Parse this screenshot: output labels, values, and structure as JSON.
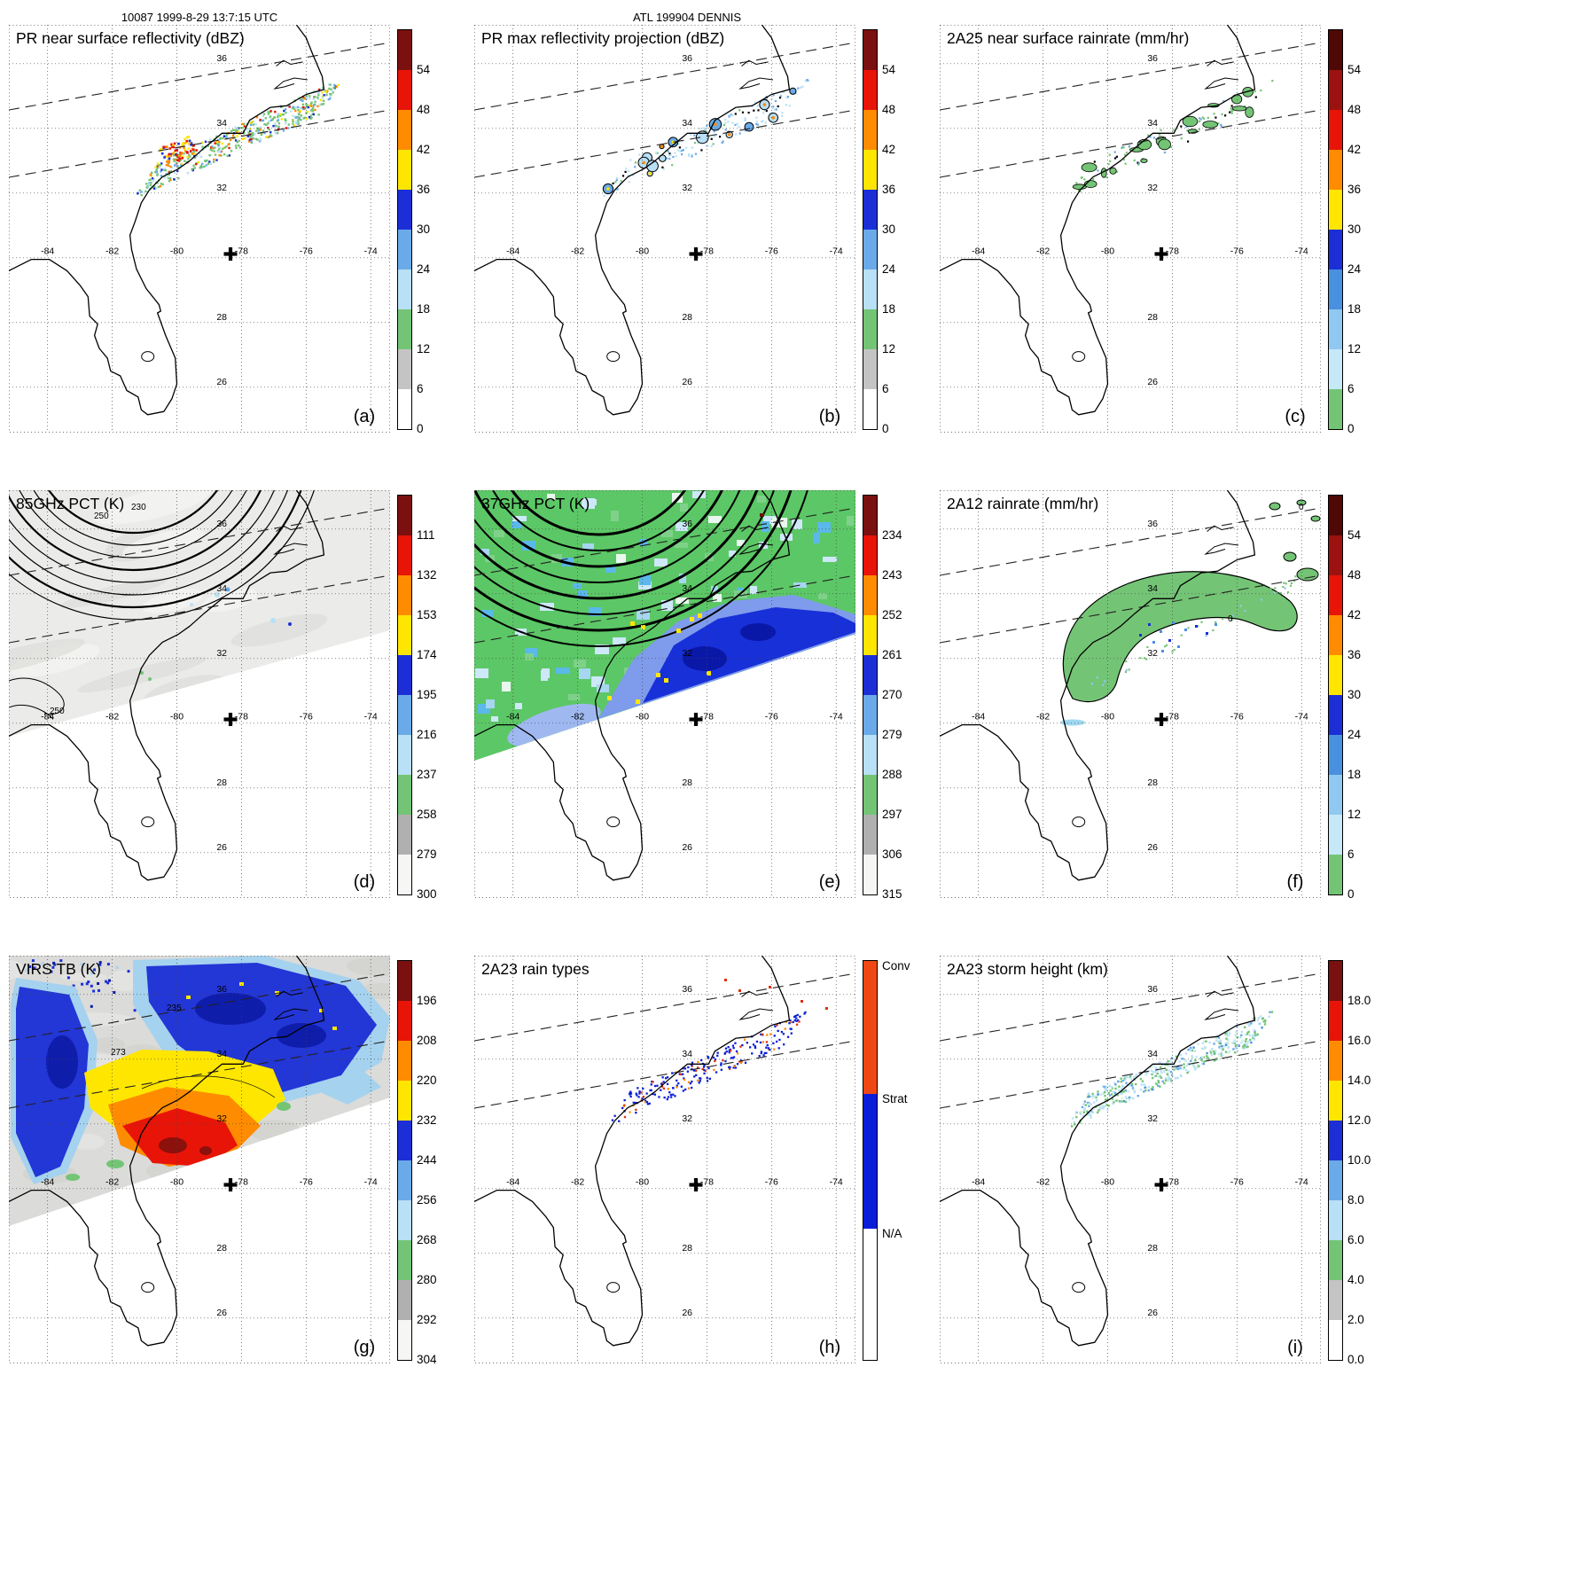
{
  "header": {
    "left": "10087 1999-8-29 13:7:15 UTC",
    "center": "ATL 199904 DENNIS"
  },
  "map": {
    "lon_labels": [
      "-84",
      "-82",
      "-80",
      "-78",
      "-76",
      "-74"
    ],
    "lat_labels": [
      "36",
      "34",
      "32",
      "28",
      "26"
    ]
  },
  "panels": [
    {
      "id": "a",
      "letter": "(a)",
      "title": "PR near surface reflectivity (dBZ)",
      "scale": "dbz",
      "colorbar_labels": [
        "54",
        "48",
        "42",
        "36",
        "30",
        "24",
        "18",
        "12",
        "6",
        "0"
      ]
    },
    {
      "id": "b",
      "letter": "(b)",
      "title": "PR max reflectivity projection (dBZ)",
      "scale": "dbz",
      "colorbar_labels": [
        "54",
        "48",
        "42",
        "36",
        "30",
        "24",
        "18",
        "12",
        "6",
        "0"
      ]
    },
    {
      "id": "c",
      "letter": "(c)",
      "title": "2A25 near surface rainrate (mm/hr)",
      "scale": "rain",
      "colorbar_labels": [
        "54",
        "48",
        "42",
        "36",
        "30",
        "24",
        "18",
        "12",
        "6",
        "0"
      ]
    },
    {
      "id": "d",
      "letter": "(d)",
      "title": "85GHz PCT (K)",
      "scale": "temp",
      "colorbar_labels": [
        "111",
        "132",
        "153",
        "174",
        "195",
        "216",
        "237",
        "258",
        "279",
        "300"
      ],
      "annotations": [
        "230",
        "250",
        "250"
      ]
    },
    {
      "id": "e",
      "letter": "(e)",
      "title": "37GHz PCT (K)",
      "scale": "temp",
      "colorbar_labels": [
        "234",
        "243",
        "252",
        "261",
        "270",
        "279",
        "288",
        "297",
        "306",
        "315"
      ]
    },
    {
      "id": "f",
      "letter": "(f)",
      "title": "2A12 rainrate (mm/hr)",
      "scale": "rain",
      "colorbar_labels": [
        "54",
        "48",
        "42",
        "36",
        "30",
        "24",
        "18",
        "12",
        "6",
        "0"
      ],
      "annotations": [
        "0",
        "0"
      ]
    },
    {
      "id": "g",
      "letter": "(g)",
      "title": "VIRS TB (K)",
      "scale": "temp",
      "colorbar_labels": [
        "196",
        "208",
        "220",
        "232",
        "244",
        "256",
        "268",
        "280",
        "292",
        "304"
      ],
      "annotations": [
        "235",
        "273"
      ]
    },
    {
      "id": "h",
      "letter": "(h)",
      "title": "2A23 rain types",
      "scale": "raintype",
      "colorbar_labels": [
        "Conv",
        "Strat",
        "N/A"
      ]
    },
    {
      "id": "i",
      "letter": "(i)",
      "title": "2A23 storm height (km)",
      "scale": "height",
      "colorbar_labels": [
        "18.0",
        "16.0",
        "14.0",
        "12.0",
        "10.0",
        "8.0",
        "6.0",
        "4.0",
        "2.0",
        "0.0"
      ]
    }
  ],
  "colors": {
    "scales": {
      "dbz": [
        "#7a100f",
        "#e81408",
        "#ff8c00",
        "#ffe600",
        "#1c2fd6",
        "#6aaae8",
        "#b8e0f6",
        "#74c476",
        "#c4c4c4",
        "#ffffff"
      ],
      "rain": [
        "#500806",
        "#9c1210",
        "#e81408",
        "#ff8c00",
        "#ffe600",
        "#1c2fd6",
        "#4a90e0",
        "#8fc8f0",
        "#c6e9f7",
        "#74c476"
      ],
      "temp": [
        "#7a100f",
        "#e81408",
        "#ff8c00",
        "#ffe600",
        "#1c2fd6",
        "#6aaae8",
        "#b8e0f6",
        "#74c476",
        "#b0b0b0",
        "#f6f6f5"
      ],
      "height": [
        "#7a100f",
        "#e81408",
        "#ff8c00",
        "#ffe600",
        "#1c2fd6",
        "#6aaae8",
        "#b8e0f6",
        "#74c476",
        "#c4c4c4",
        "#ffffff"
      ],
      "raintype": [
        "#f04814",
        "#0a1ed8",
        "#ffffff"
      ]
    },
    "coastline": "#000000",
    "background": "#ffffff"
  },
  "chart_data": [
    {
      "panel": "(a)",
      "type": "heatmap",
      "title": "PR near surface reflectivity (dBZ)",
      "units": "dBZ",
      "colorbar_ticks": [
        54,
        48,
        42,
        36,
        30,
        24,
        18,
        12,
        6,
        0
      ],
      "lon_ticks": [
        -84,
        -82,
        -80,
        -78,
        -76,
        -74
      ],
      "lat_ticks": [
        36,
        34,
        32,
        30,
        28,
        26
      ],
      "notes": "Scattered convective echoes 18-54 dBZ along the SC/NC coast inside the narrow PR swath (dashed edges); storm center marked by cross near 78.3W 30.1N"
    },
    {
      "panel": "(b)",
      "type": "heatmap",
      "title": "PR max reflectivity projection (dBZ)",
      "units": "dBZ",
      "colorbar_ticks": [
        54,
        48,
        42,
        36,
        30,
        24,
        18,
        12,
        6,
        0
      ],
      "notes": "Outlined cells of 24-48 dBZ max reflectivity along the coast within the PR swath"
    },
    {
      "panel": "(c)",
      "type": "heatmap",
      "title": "2A25 near surface rainrate (mm/hr)",
      "units": "mm/hr",
      "colorbar_ticks": [
        54,
        48,
        42,
        36,
        30,
        24,
        18,
        12,
        6,
        0
      ],
      "notes": "Mostly light (0-6 mm/hr, green) rain patches with embedded heavier cells along the coast"
    },
    {
      "panel": "(d)",
      "type": "heatmap",
      "title": "85GHz PCT (K)",
      "units": "K",
      "colorbar_ticks": [
        111,
        132,
        153,
        174,
        195,
        216,
        237,
        258,
        279,
        300
      ],
      "contour_labels": [
        230,
        250,
        250
      ],
      "notes": "Grayscale PCT field over wide TMI swath with 230/250 K contour rings northwest of the storm; small ice-scattering minima near the coast"
    },
    {
      "panel": "(e)",
      "type": "heatmap",
      "title": "37GHz PCT (K)",
      "units": "K",
      "colorbar_ticks": [
        234,
        243,
        252,
        261,
        270,
        279,
        288,
        297,
        306,
        315
      ],
      "notes": "Green (~288 K) background with broad blue (270-279 K) emission region over the ocean east of the center and black contour rings; isolated yellow (~261 K) minima"
    },
    {
      "panel": "(f)",
      "type": "heatmap",
      "title": "2A12 rainrate (mm/hr)",
      "units": "mm/hr",
      "colorbar_ticks": [
        54,
        48,
        42,
        36,
        30,
        24,
        18,
        12,
        6,
        0
      ],
      "contour_labels": [
        0,
        0
      ],
      "notes": "Broad light-rain (0-6 mm/hr) shield, outlined by the 0 contour, curving around the center with embedded 12-24 mm/hr specks"
    },
    {
      "panel": "(g)",
      "type": "heatmap",
      "title": "VIRS TB (K)",
      "units": "K",
      "colorbar_ticks": [
        196,
        208,
        220,
        232,
        244,
        256,
        268,
        280,
        292,
        304
      ],
      "contour_labels": [
        235,
        273
      ],
      "notes": "IR brightness temperature: cold blue canopy (232-244 K) around a very cold yellow/orange/red core (196-232 K) near the storm center; gray warm background"
    },
    {
      "panel": "(h)",
      "type": "heatmap",
      "title": "2A23 rain types",
      "categories": [
        "Conv",
        "Strat",
        "N/A"
      ],
      "colors": [
        "#f04814",
        "#0a1ed8",
        "#ffffff"
      ],
      "notes": "Mostly stratiform (blue) pixels with scattered convective (red) pixels along the coastal rainband inside the PR swath"
    },
    {
      "panel": "(i)",
      "type": "heatmap",
      "title": "2A23 storm height (km)",
      "units": "km",
      "colorbar_ticks": [
        18.0,
        16.0,
        14.0,
        12.0,
        10.0,
        8.0,
        6.0,
        4.0,
        2.0,
        0.0
      ],
      "notes": "Storm heights mostly 4-10 km (green to light blue) along the coastal rainband"
    }
  ]
}
